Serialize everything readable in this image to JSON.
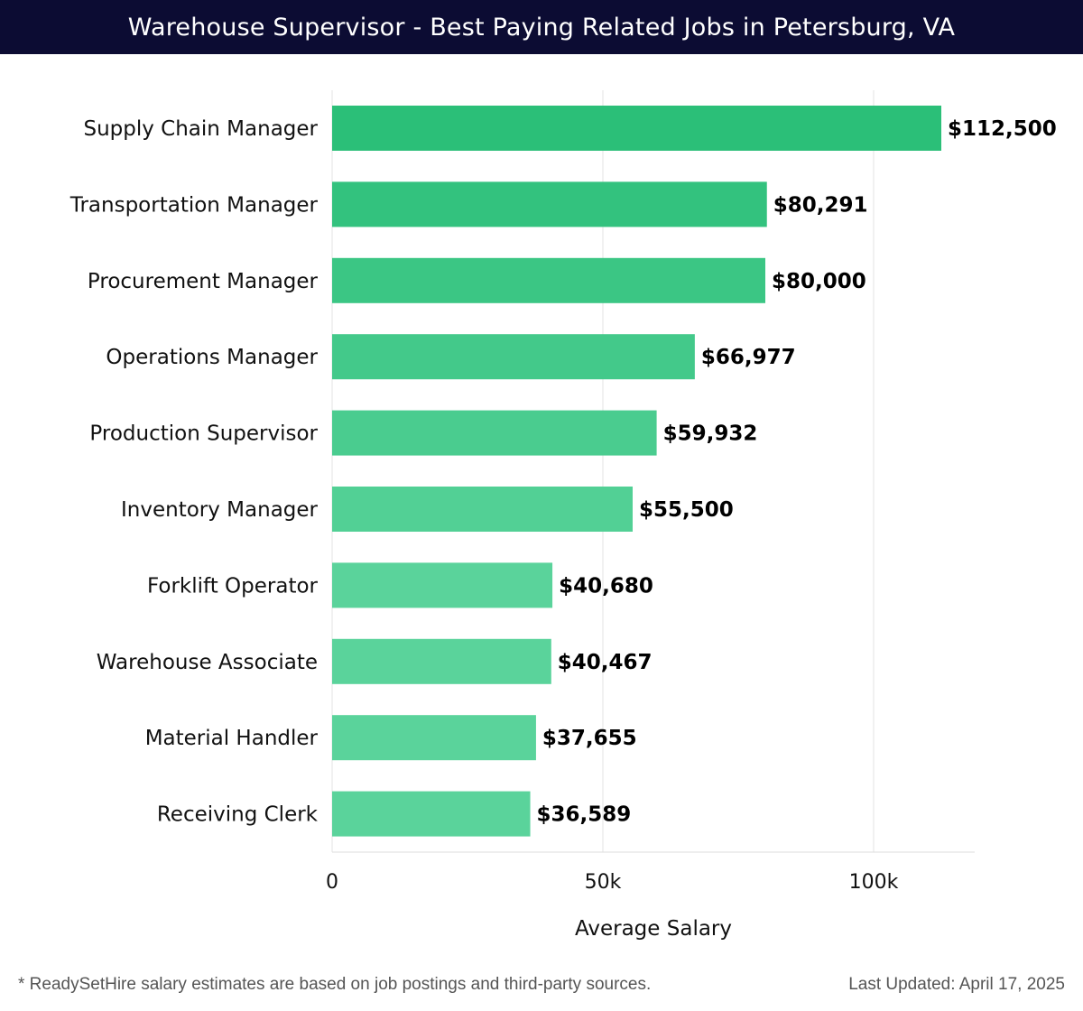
{
  "header": {
    "title": "Warehouse Supervisor - Best Paying Related Jobs in Petersburg, VA"
  },
  "footer": {
    "note": "* ReadySetHire salary estimates are based on job postings and third-party sources.",
    "updated": "Last Updated: April 17, 2025"
  },
  "colors": {
    "header_bg": "#0c0c33",
    "bar_top": "#2bbf78",
    "bar_bottom": "#5ad39b",
    "grid": "#e3e3e3"
  },
  "chart_data": {
    "type": "bar",
    "orientation": "horizontal",
    "title": "Warehouse Supervisor - Best Paying Related Jobs in Petersburg, VA",
    "xlabel": "Average Salary",
    "ylabel": "",
    "xlim": [
      0,
      118500
    ],
    "xticks": [
      0,
      50000,
      100000
    ],
    "xtick_labels": [
      "0",
      "50k",
      "100k"
    ],
    "grid": true,
    "categories": [
      "Supply Chain Manager",
      "Transportation Manager",
      "Procurement Manager",
      "Operations Manager",
      "Production Supervisor",
      "Inventory Manager",
      "Forklift Operator",
      "Warehouse Associate",
      "Material Handler",
      "Receiving Clerk"
    ],
    "values": [
      112500,
      80291,
      80000,
      66977,
      59932,
      55500,
      40680,
      40467,
      37655,
      36589
    ],
    "value_labels": [
      "$112,500",
      "$80,291",
      "$80,000",
      "$66,977",
      "$59,932",
      "$55,500",
      "$40,680",
      "$40,467",
      "$37,655",
      "$36,589"
    ]
  }
}
